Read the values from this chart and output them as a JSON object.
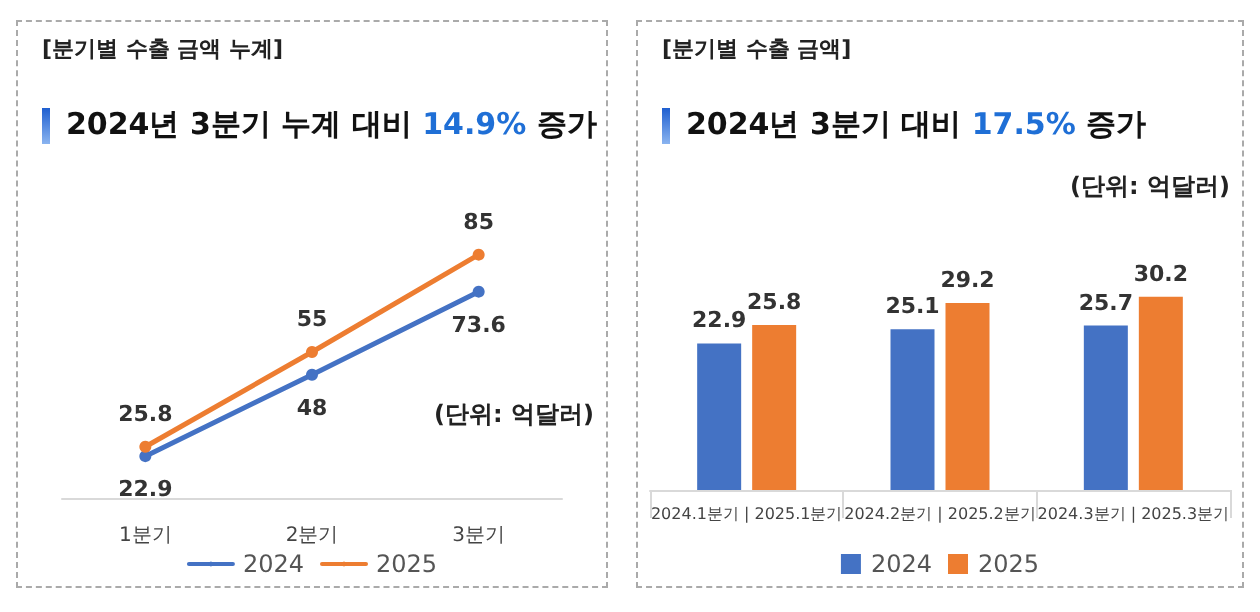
{
  "chart_data": [
    {
      "type": "line",
      "title": "[분기별 수출 금액 누계]",
      "subtitle": "2024년 3분기 누계 대비 14.9% 증가",
      "categories": [
        "1분기",
        "2분기",
        "3분기"
      ],
      "series": [
        {
          "name": "2024",
          "color": "#4472c4",
          "values": [
            22.9,
            48,
            73.6
          ]
        },
        {
          "name": "2025",
          "color": "#ed7d31",
          "values": [
            25.8,
            55,
            85
          ]
        }
      ],
      "annotations": [
        "(단위: 억달러)"
      ],
      "data_labels": true,
      "marker": "circle",
      "legend": "bottom",
      "grid": false,
      "tick_labels": "x"
    },
    {
      "type": "bar",
      "title": "[분기별 수출 금액]",
      "subtitle": "2024년 3분기 대비 17.5% 증가",
      "categories": [
        "2024.1분기 | 2025.1분기",
        "2024.2분기 | 2025.2분기",
        "2024.3분기 | 2025.3분기"
      ],
      "series": [
        {
          "name": "2024",
          "color": "#4472c4",
          "values": [
            22.9,
            25.1,
            25.7
          ]
        },
        {
          "name": "2025",
          "color": "#ed7d31",
          "values": [
            25.8,
            29.2,
            30.2
          ]
        }
      ],
      "annotations": [
        "(단위: 억달러)"
      ],
      "data_labels": true,
      "legend": "bottom",
      "grid": false,
      "tick_labels": "x"
    }
  ]
}
